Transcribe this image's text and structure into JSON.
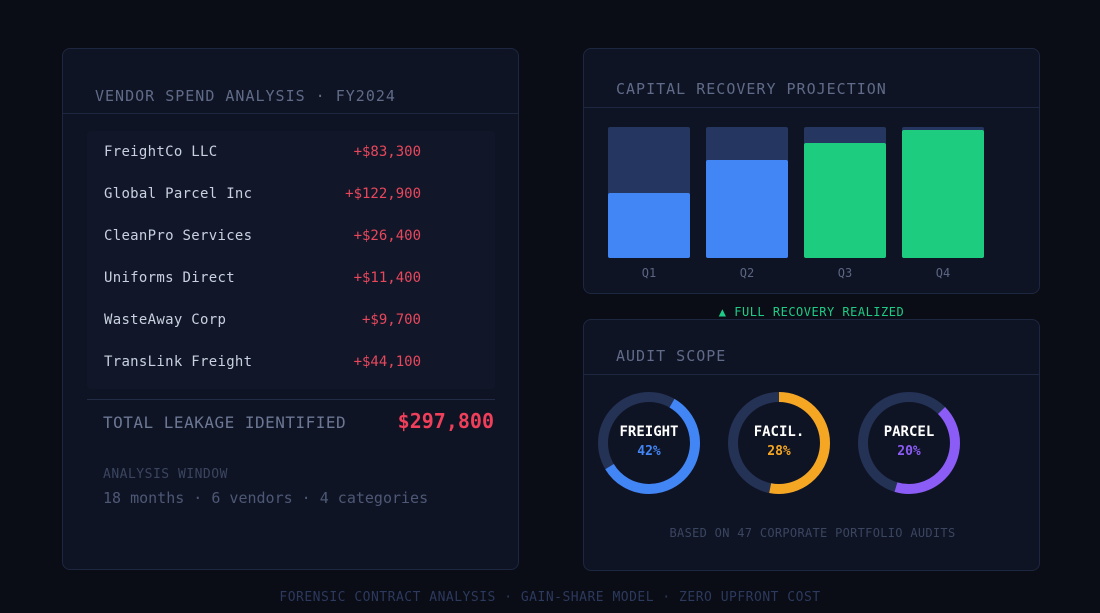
{
  "vendor_panel": {
    "title": "VENDOR SPEND ANALYSIS · FY2024",
    "vendors": [
      {
        "name": "FreightCo LLC",
        "amount": "+$83,300"
      },
      {
        "name": "Global Parcel Inc",
        "amount": "+$122,900"
      },
      {
        "name": "CleanPro Services",
        "amount": "+$26,400"
      },
      {
        "name": "Uniforms Direct",
        "amount": "+$11,400"
      },
      {
        "name": "WasteAway Corp",
        "amount": "+$9,700"
      },
      {
        "name": "TransLink Freight",
        "amount": "+$44,100"
      }
    ],
    "total_label": "TOTAL LEAKAGE IDENTIFIED",
    "total_value": "$297,800",
    "window_label": "ANALYSIS WINDOW",
    "window_value": "18 months · 6 vendors · 4 categories"
  },
  "capital_panel": {
    "title": "CAPITAL RECOVERY PROJECTION",
    "bars": [
      {
        "label": "Q1",
        "fraction": 0.5,
        "color": "#4285f4"
      },
      {
        "label": "Q2",
        "fraction": 0.75,
        "color": "#4285f4"
      },
      {
        "label": "Q3",
        "fraction": 0.88,
        "color": "#1ecc7f"
      },
      {
        "label": "Q4",
        "fraction": 0.98,
        "color": "#1ecc7f"
      }
    ],
    "status": "▲ FULL RECOVERY REALIZED"
  },
  "audit_panel": {
    "title": "AUDIT SCOPE",
    "donuts": [
      {
        "label": "FREIGHT",
        "pct": "42%",
        "value": 42,
        "color": "#4285f4"
      },
      {
        "label": "FACIL.",
        "pct": "28%",
        "value": 28,
        "color": "#f5a623"
      },
      {
        "label": "PARCEL",
        "pct": "20%",
        "value": 20,
        "color": "#8b5cf6"
      }
    ],
    "note": "BASED ON 47 CORPORATE PORTFOLIO AUDITS"
  },
  "footer": "FORENSIC CONTRACT ANALYSIS · GAIN-SHARE MODEL · ZERO UPFRONT COST"
}
